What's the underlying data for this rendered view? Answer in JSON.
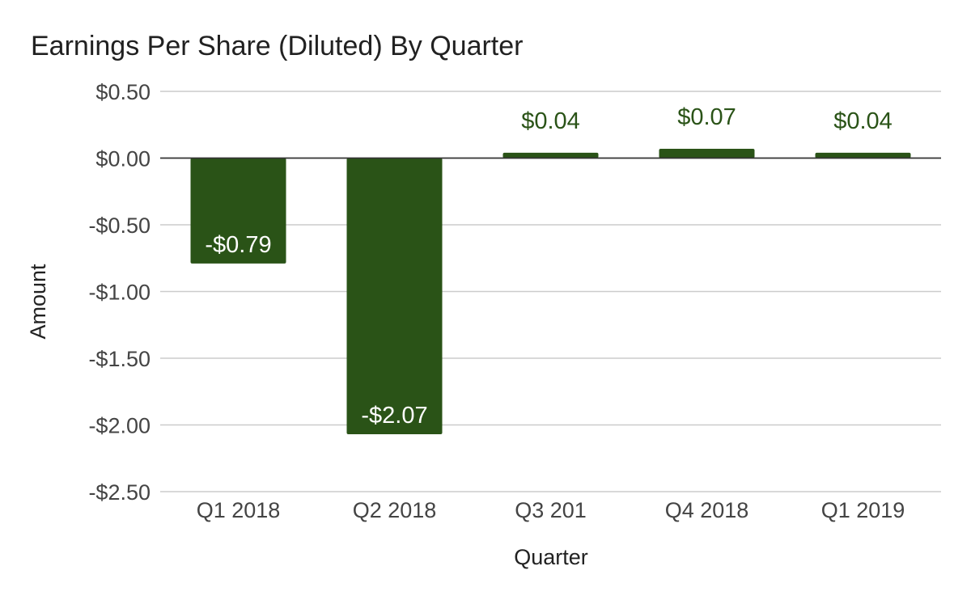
{
  "chart_data": {
    "type": "bar",
    "title": "Earnings Per Share (Diluted) By Quarter",
    "xlabel": "Quarter",
    "ylabel": "Amount",
    "categories": [
      "Q1 2018",
      "Q2 2018",
      "Q3 201",
      "Q4 2018",
      "Q1 2019"
    ],
    "values": [
      -0.79,
      -2.07,
      0.04,
      0.07,
      0.04
    ],
    "data_labels": [
      "-$0.79",
      "-$2.07",
      "$0.04",
      "$0.07",
      "$0.04"
    ],
    "ylim": [
      -2.5,
      0.5
    ],
    "yticks": [
      0.5,
      0.0,
      -0.5,
      -1.0,
      -1.5,
      -2.0,
      -2.5
    ],
    "ytick_labels": [
      "$0.50",
      "$0.00",
      "-$0.50",
      "-$1.00",
      "-$1.50",
      "-$2.00",
      "-$2.50"
    ],
    "grid": true,
    "legend": "none",
    "colors": {
      "bar": "#2a5317",
      "positive_label": "#2a5317",
      "negative_label": "#ffffff",
      "grid": "#cccccc",
      "zero_line": "#333333"
    }
  }
}
